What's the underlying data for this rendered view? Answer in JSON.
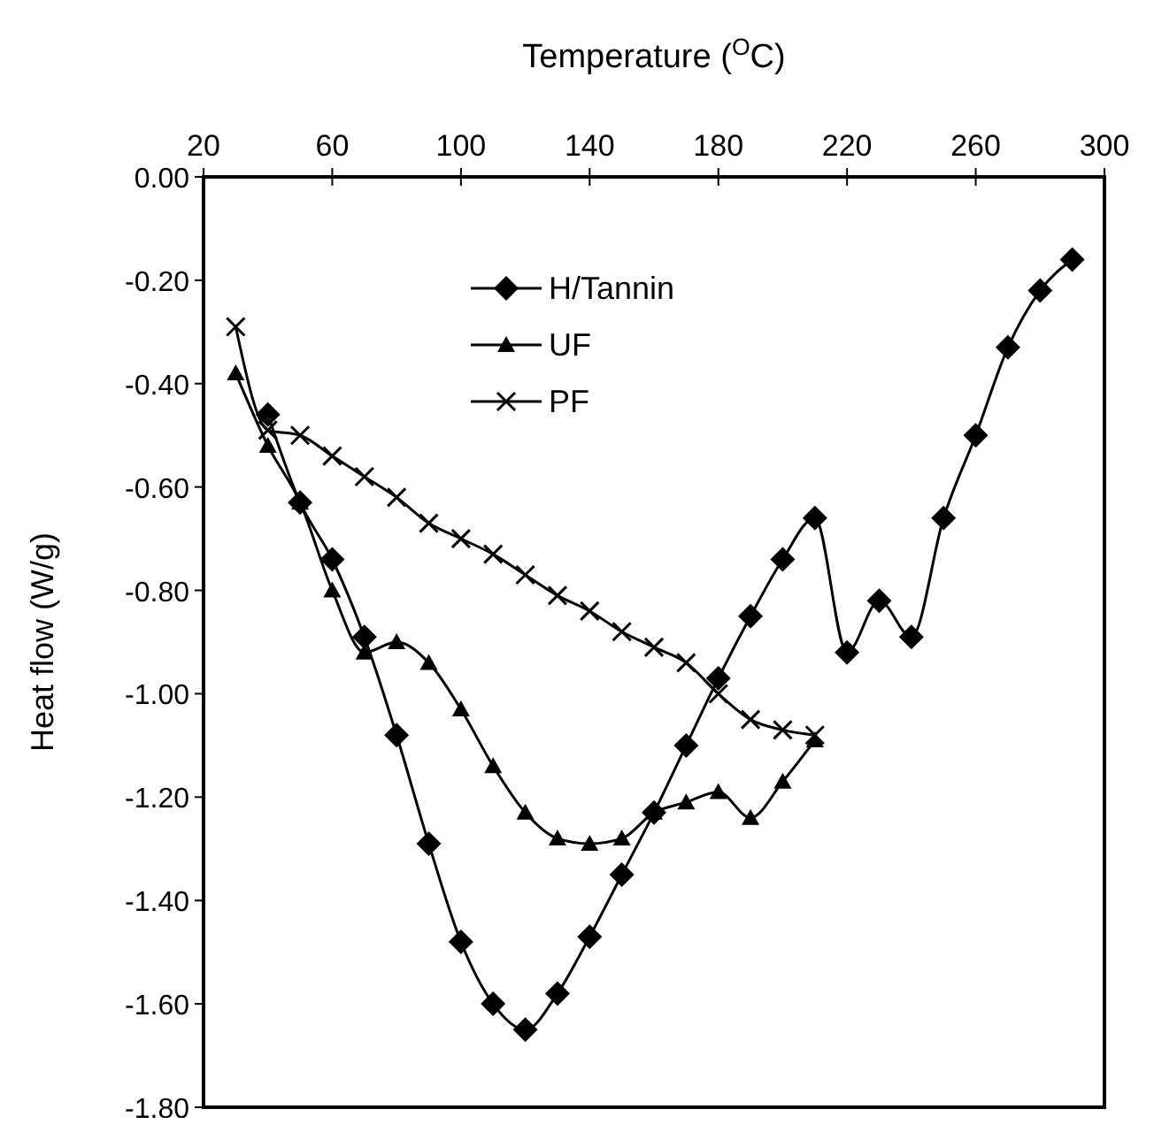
{
  "chart_data": {
    "type": "line",
    "xlabel": "Temperature ($^{O}$C)",
    "ylabel": "Heat flow (W/g)",
    "xlim": [
      20,
      300
    ],
    "xticks": [
      20,
      60,
      100,
      140,
      180,
      220,
      260,
      300
    ],
    "ylim": [
      -1.8,
      0
    ],
    "yticks": [
      {
        "value": 0,
        "label": "0.00"
      },
      {
        "value": -0.2,
        "label": "-0.20"
      },
      {
        "value": -0.4,
        "label": "-0.40"
      },
      {
        "value": -0.6,
        "label": "-0.60"
      },
      {
        "value": -0.8,
        "label": "-0.80"
      },
      {
        "value": -1,
        "label": "-1.00"
      },
      {
        "value": -1.2,
        "label": "-1.20"
      },
      {
        "value": -1.4,
        "label": "-1.40"
      },
      {
        "value": -1.6,
        "label": "-1.60"
      },
      {
        "value": -1.8,
        "label": "-1.80"
      }
    ],
    "grid": false,
    "legend": "top",
    "line_style": "solid",
    "series": [
      {
        "name": "H/Tannin",
        "color": "#000000",
        "marker": "diamond",
        "x": [
          40,
          50,
          60,
          70,
          80,
          90,
          100,
          110,
          120,
          130,
          140,
          150,
          160,
          170,
          180,
          190,
          200,
          210,
          220,
          230,
          240,
          250,
          260,
          270,
          280,
          290
        ],
        "values": [
          -0.46,
          -0.63,
          -0.74,
          -0.89,
          -1.08,
          -1.29,
          -1.48,
          -1.6,
          -1.65,
          -1.58,
          -1.47,
          -1.35,
          -1.23,
          -1.1,
          -0.97,
          -0.85,
          -0.74,
          -0.66,
          -0.92,
          -0.82,
          -0.89,
          -0.66,
          -0.5,
          -0.33,
          -0.22,
          -0.16
        ]
      },
      {
        "name": "UF",
        "color": "#000000",
        "marker": "triangle",
        "x": [
          30,
          40,
          50,
          60,
          70,
          80,
          90,
          100,
          110,
          120,
          130,
          140,
          150,
          160,
          170,
          180,
          190,
          200,
          210
        ],
        "values": [
          -0.38,
          -0.52,
          -0.63,
          -0.8,
          -0.92,
          -0.9,
          -0.94,
          -1.03,
          -1.14,
          -1.23,
          -1.28,
          -1.29,
          -1.28,
          -1.23,
          -1.21,
          -1.19,
          -1.24,
          -1.17,
          -1.09
        ]
      },
      {
        "name": "PF",
        "color": "#000000",
        "marker": "cross",
        "x": [
          30,
          40,
          50,
          60,
          70,
          80,
          90,
          100,
          110,
          120,
          130,
          140,
          150,
          160,
          170,
          180,
          190,
          200,
          210
        ],
        "values": [
          -0.29,
          -0.49,
          -0.5,
          -0.54,
          -0.58,
          -0.62,
          -0.67,
          -0.7,
          -0.73,
          -0.77,
          -0.81,
          -0.84,
          -0.88,
          -0.91,
          -0.94,
          -1,
          -1.05,
          -1.07,
          -1.08
        ]
      }
    ]
  }
}
